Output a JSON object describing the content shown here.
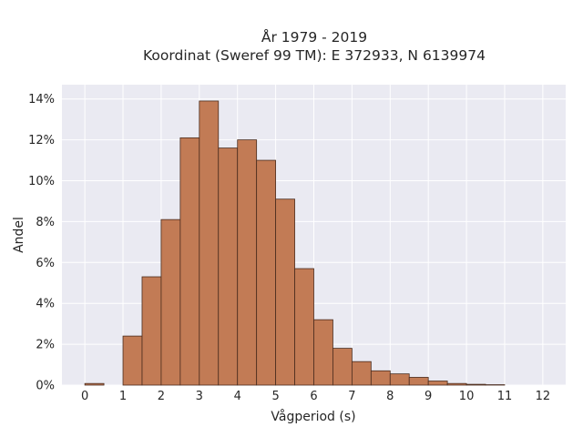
{
  "chart_data": {
    "type": "bar",
    "title_lines": [
      "År 1979 - 2019",
      "Koordinat (Sweref 99 TM): E 372933, N 6139974"
    ],
    "xlabel": "Vågperiod (s)",
    "ylabel": "Andel",
    "xlim": [
      -0.6,
      12.6
    ],
    "ylim": [
      0,
      0.147
    ],
    "x_ticks": [
      0,
      1,
      2,
      3,
      4,
      5,
      6,
      7,
      8,
      9,
      10,
      11,
      12
    ],
    "x_tick_labels": [
      "0",
      "1",
      "2",
      "3",
      "4",
      "5",
      "6",
      "7",
      "8",
      "9",
      "10",
      "11",
      "12"
    ],
    "y_ticks": [
      0,
      0.02,
      0.04,
      0.06,
      0.08,
      0.1,
      0.12,
      0.14
    ],
    "y_tick_labels": [
      "0%",
      "2%",
      "4%",
      "6%",
      "8%",
      "10%",
      "12%",
      "14%"
    ],
    "bin_width": 0.5,
    "bin_starts": [
      0,
      1,
      1.5,
      2,
      2.5,
      3,
      3.5,
      4,
      4.5,
      5,
      5.5,
      6,
      6.5,
      7,
      7.5,
      8,
      8.5,
      9,
      9.5,
      10,
      10.5
    ],
    "values": [
      0.0008,
      0.024,
      0.053,
      0.081,
      0.121,
      0.139,
      0.116,
      0.12,
      0.11,
      0.091,
      0.057,
      0.032,
      0.018,
      0.0115,
      0.007,
      0.0055,
      0.0038,
      0.002,
      0.0008,
      0.0004,
      0.0002
    ],
    "grid": true,
    "colors": {
      "bar_fill": "#c27b55",
      "bar_edge": "#4a2c1e",
      "plot_bg": "#eaeaf2",
      "grid": "#ffffff"
    }
  }
}
